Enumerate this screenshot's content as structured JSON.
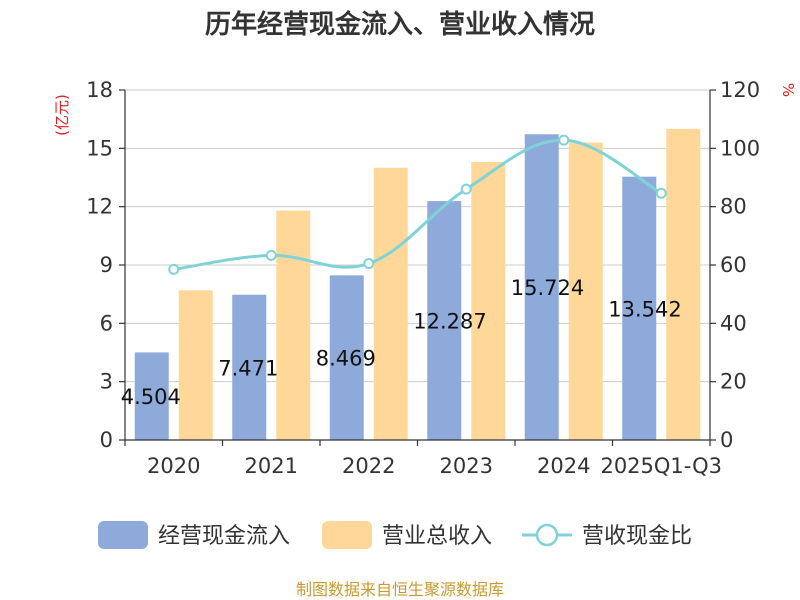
{
  "chart_data": {
    "type": "bar",
    "title": "历年经营现金流入、营业收入情况",
    "categories": [
      "2020",
      "2021",
      "2022",
      "2023",
      "2024",
      "2025Q1-Q3"
    ],
    "series": [
      {
        "name": "经营现金流入",
        "kind": "bar",
        "axis": "left",
        "color": "#8eaadb",
        "values": [
          4.504,
          7.471,
          8.469,
          12.287,
          15.724,
          13.542
        ],
        "labels": [
          "4.504",
          "7.471",
          "8.469",
          "12.287",
          "15.724",
          "13.542"
        ]
      },
      {
        "name": "营业总收入",
        "kind": "bar",
        "axis": "left",
        "color": "#ffd899",
        "values": [
          7.7,
          11.8,
          14.0,
          14.3,
          15.3,
          16.0
        ]
      },
      {
        "name": "营收现金比",
        "kind": "line",
        "axis": "right",
        "color": "#7fd3d8",
        "values": [
          58.5,
          63.3,
          60.5,
          86.0,
          102.8,
          84.6
        ]
      }
    ],
    "ylabel_left": "(亿元)",
    "ylabel_right": "%",
    "ylim_left": [
      0,
      18
    ],
    "yticks_left": [
      "0",
      "3",
      "6",
      "9",
      "12",
      "15",
      "18"
    ],
    "ylim_right": [
      0,
      120
    ],
    "yticks_right": [
      "0",
      "20",
      "40",
      "60",
      "80",
      "100",
      "120"
    ],
    "legend_position": "bottom",
    "grid": true
  },
  "source": "制图数据来自恒生聚源数据库"
}
